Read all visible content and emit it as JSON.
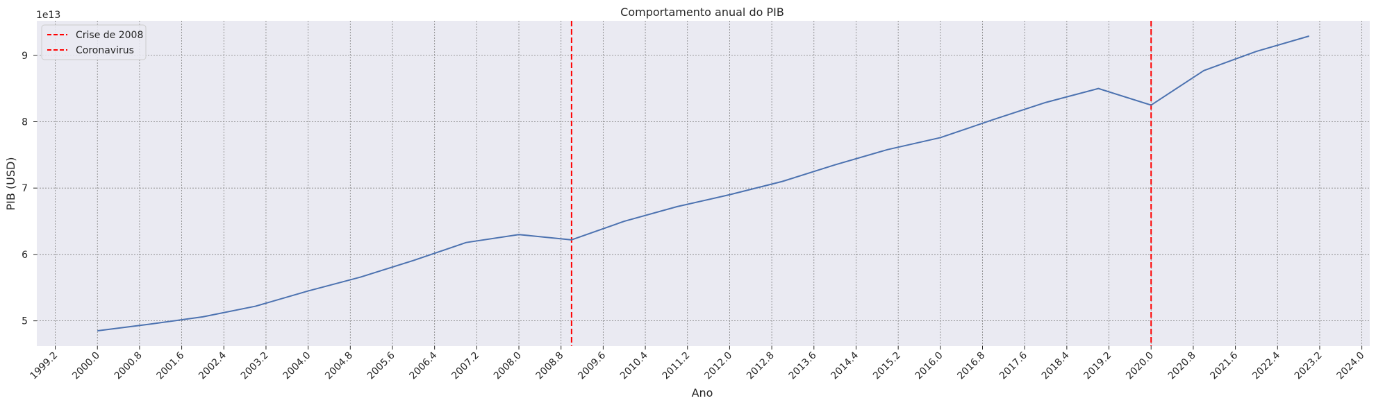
{
  "chart_data": {
    "type": "line",
    "title": "Comportamento anual do PIB",
    "xlabel": "Ano",
    "ylabel": "PIB (USD)",
    "y_offset_label": "1e13",
    "y_scale": 10000000000000.0,
    "xlim": [
      1998.85,
      2024.15
    ],
    "ylim": [
      4.62,
      9.52
    ],
    "x_ticks": [
      1999.2,
      2000.0,
      2000.8,
      2001.6,
      2002.4,
      2003.2,
      2004.0,
      2004.8,
      2005.6,
      2006.4,
      2007.2,
      2008.0,
      2008.8,
      2009.6,
      2010.4,
      2011.2,
      2012.0,
      2012.8,
      2013.6,
      2014.4,
      2015.2,
      2016.0,
      2016.8,
      2017.6,
      2018.4,
      2019.2,
      2020.0,
      2020.8,
      2021.6,
      2022.4,
      2023.2,
      2024.0
    ],
    "x_tick_labels": [
      "1999.2",
      "2000.0",
      "2000.8",
      "2001.6",
      "2002.4",
      "2003.2",
      "2004.0",
      "2004.8",
      "2005.6",
      "2006.4",
      "2007.2",
      "2008.0",
      "2008.8",
      "2009.6",
      "2010.4",
      "2011.2",
      "2012.0",
      "2012.8",
      "2013.6",
      "2014.4",
      "2015.2",
      "2016.0",
      "2016.8",
      "2017.6",
      "2018.4",
      "2019.2",
      "2020.0",
      "2020.8",
      "2021.6",
      "2022.4",
      "2023.2",
      "2024.0"
    ],
    "y_ticks": [
      5,
      6,
      7,
      8,
      9
    ],
    "y_tick_labels": [
      "5",
      "6",
      "7",
      "8",
      "9"
    ],
    "grid": true,
    "legend_position": "top-left",
    "series": [
      {
        "name": "PIB",
        "color": "#4c72b0",
        "x": [
          2000,
          2001,
          2002,
          2003,
          2004,
          2005,
          2006,
          2007,
          2008,
          2009,
          2010,
          2011,
          2012,
          2013,
          2014,
          2015,
          2016,
          2017,
          2018,
          2019,
          2020,
          2021,
          2022,
          2023
        ],
        "values": [
          4.85,
          4.95,
          5.06,
          5.22,
          5.45,
          5.66,
          5.91,
          6.18,
          6.3,
          6.22,
          6.5,
          6.72,
          6.9,
          7.1,
          7.35,
          7.58,
          7.76,
          8.03,
          8.29,
          8.5,
          8.25,
          8.77,
          9.06,
          9.29
        ]
      }
    ],
    "vlines": [
      {
        "label": "Crise de 2008",
        "x": 2009,
        "color": "#ff0000"
      },
      {
        "label": "Coronavirus",
        "x": 2020,
        "color": "#ff0000"
      }
    ],
    "colors": {
      "background": "#eaeaf2",
      "grid": "#808080",
      "text": "#262626"
    }
  }
}
